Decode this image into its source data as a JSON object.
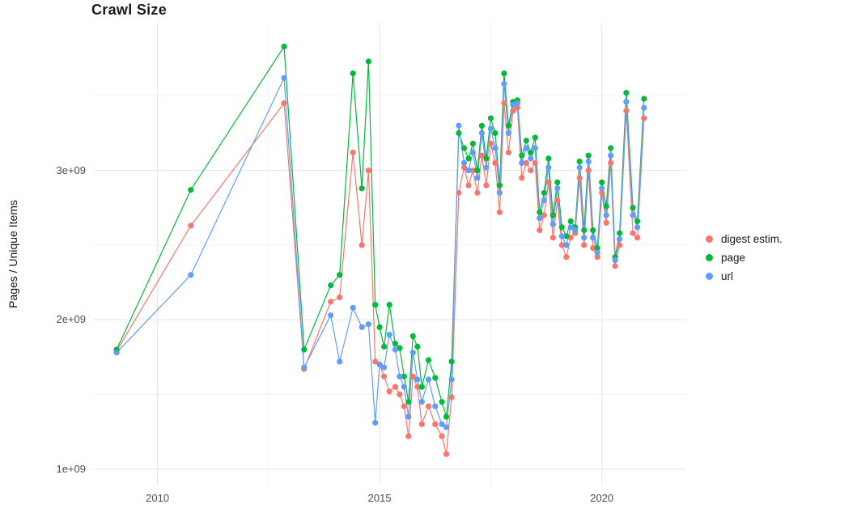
{
  "chart_data": {
    "type": "line",
    "title": "Crawl Size",
    "xlabel": "",
    "ylabel": "Pages / Unique Items",
    "value_unit": "1e+09",
    "grid": true,
    "legend_position": "right",
    "xlim": [
      2008.55,
      2021.9
    ],
    "ylim": [
      0.89,
      3.99
    ],
    "x_ticks": [
      {
        "value": 2010,
        "label": "2010"
      },
      {
        "value": 2015,
        "label": "2015"
      },
      {
        "value": 2020,
        "label": "2020"
      }
    ],
    "x_minor": [
      2012.5,
      2017.5
    ],
    "y_ticks": [
      {
        "value": 1,
        "label": "1e+09"
      },
      {
        "value": 2,
        "label": "2e+09"
      },
      {
        "value": 3,
        "label": "3e+09"
      }
    ],
    "y_minor": [
      1.5,
      2.5,
      3.5
    ],
    "x": [
      2009.08,
      2010.75,
      2012.85,
      2013.3,
      2013.9,
      2014.1,
      2014.4,
      2014.6,
      2014.75,
      2014.9,
      2015.0,
      2015.1,
      2015.22,
      2015.35,
      2015.45,
      2015.55,
      2015.65,
      2015.75,
      2015.85,
      2015.95,
      2016.1,
      2016.25,
      2016.4,
      2016.5,
      2016.62,
      2016.78,
      2016.9,
      2017.0,
      2017.1,
      2017.2,
      2017.3,
      2017.4,
      2017.5,
      2017.6,
      2017.7,
      2017.8,
      2017.9,
      2018.0,
      2018.1,
      2018.2,
      2018.3,
      2018.4,
      2018.5,
      2018.6,
      2018.7,
      2018.8,
      2018.9,
      2019.0,
      2019.1,
      2019.2,
      2019.3,
      2019.4,
      2019.5,
      2019.6,
      2019.7,
      2019.8,
      2019.9,
      2020.0,
      2020.1,
      2020.2,
      2020.3,
      2020.4,
      2020.55,
      2020.7,
      2020.8,
      2020.95
    ],
    "series": [
      {
        "name": "digest estim.",
        "color": "#F8766D",
        "values": [
          1.79,
          2.63,
          3.45,
          1.67,
          2.12,
          2.15,
          3.12,
          2.5,
          3.0,
          1.72,
          1.7,
          1.62,
          1.52,
          1.55,
          1.5,
          1.42,
          1.22,
          1.62,
          1.55,
          1.3,
          1.42,
          1.3,
          1.22,
          1.1,
          1.48,
          2.85,
          3.02,
          2.9,
          3.0,
          2.85,
          3.1,
          2.9,
          3.18,
          3.05,
          2.72,
          3.45,
          3.12,
          3.4,
          3.42,
          2.95,
          3.05,
          3.0,
          3.05,
          2.6,
          2.7,
          2.92,
          2.55,
          2.8,
          2.5,
          2.42,
          2.55,
          2.58,
          2.95,
          2.5,
          3.0,
          2.48,
          2.42,
          2.85,
          2.65,
          3.05,
          2.36,
          2.5,
          3.4,
          2.58,
          2.55,
          3.35
        ]
      },
      {
        "name": "page",
        "color": "#00BA38",
        "values": [
          1.8,
          2.87,
          3.83,
          1.8,
          2.23,
          2.3,
          3.65,
          2.88,
          3.73,
          2.1,
          1.95,
          1.82,
          2.1,
          1.84,
          1.81,
          1.62,
          1.45,
          1.89,
          1.82,
          1.55,
          1.73,
          1.61,
          1.45,
          1.35,
          1.72,
          3.25,
          3.15,
          3.08,
          3.18,
          3.0,
          3.3,
          3.08,
          3.35,
          3.25,
          2.9,
          3.65,
          3.3,
          3.46,
          3.47,
          3.1,
          3.2,
          3.12,
          3.22,
          2.72,
          2.85,
          3.08,
          2.7,
          2.92,
          2.62,
          2.56,
          2.66,
          2.62,
          3.06,
          2.6,
          3.1,
          2.6,
          2.48,
          2.92,
          2.76,
          3.15,
          2.42,
          2.58,
          3.52,
          2.75,
          2.66,
          3.48
        ]
      },
      {
        "name": "url",
        "color": "#619CFF",
        "values": [
          1.78,
          2.3,
          3.62,
          1.68,
          2.03,
          1.72,
          2.08,
          1.95,
          1.97,
          1.31,
          1.7,
          1.68,
          1.9,
          1.8,
          1.62,
          1.55,
          1.35,
          1.78,
          1.6,
          1.45,
          1.6,
          1.42,
          1.3,
          1.28,
          1.6,
          3.3,
          3.05,
          3.0,
          3.12,
          2.95,
          3.25,
          3.02,
          3.28,
          3.15,
          2.85,
          3.58,
          3.25,
          3.44,
          3.45,
          3.05,
          3.15,
          3.08,
          3.15,
          2.68,
          2.8,
          3.02,
          2.64,
          2.88,
          2.56,
          2.5,
          2.62,
          2.6,
          3.02,
          2.55,
          3.06,
          2.55,
          2.45,
          2.88,
          2.7,
          3.1,
          2.4,
          2.54,
          3.46,
          2.7,
          2.62,
          3.42
        ]
      }
    ]
  }
}
